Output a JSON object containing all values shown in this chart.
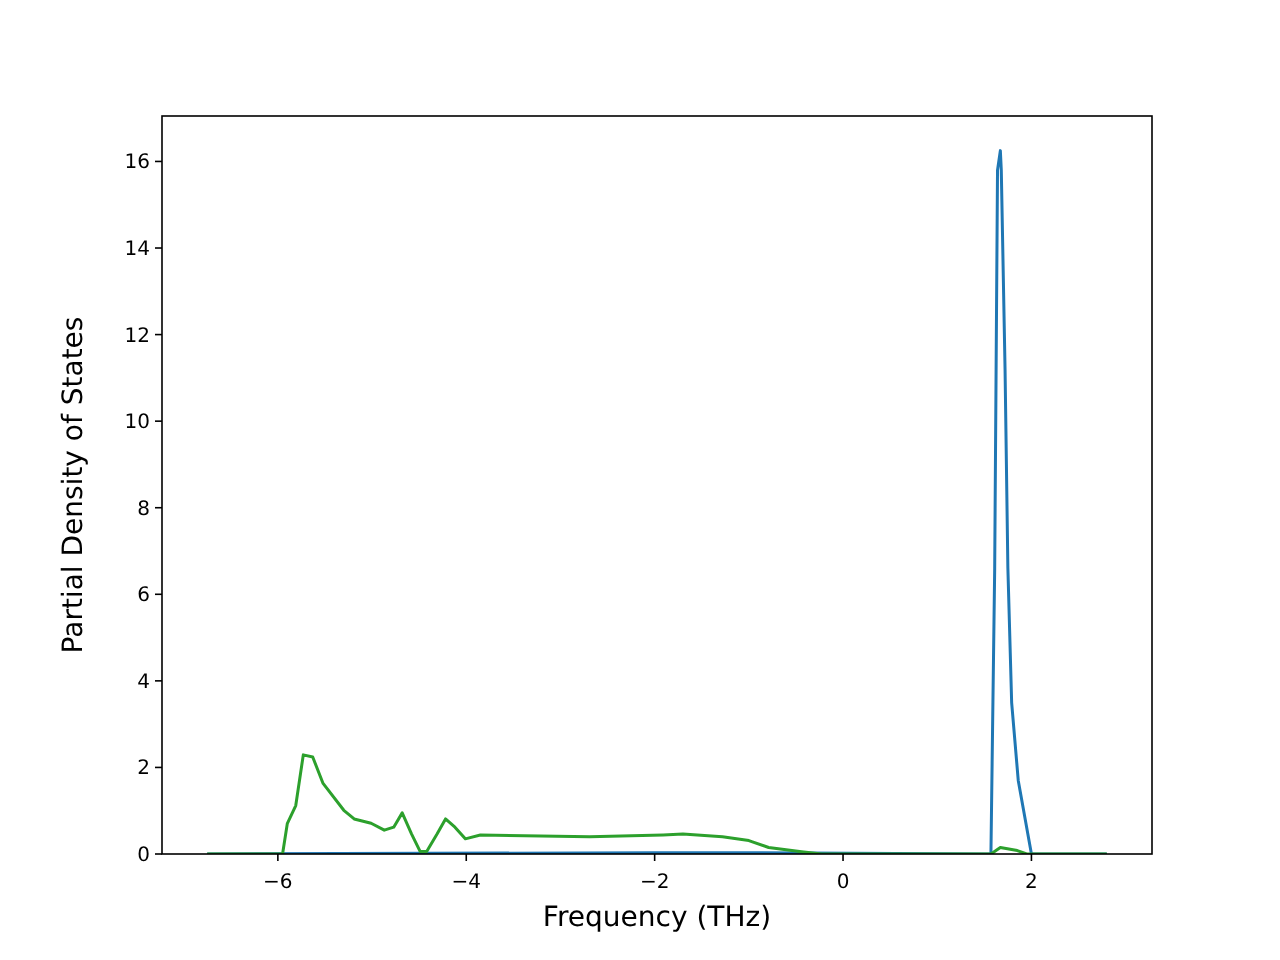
{
  "chart_data": {
    "type": "line",
    "xlabel": "Frequency (THz)",
    "ylabel": "Partial Density of States",
    "xlim": [
      -7.23,
      3.28
    ],
    "ylim": [
      0,
      17.05
    ],
    "xticks": [
      -6,
      -4,
      -2,
      0,
      2
    ],
    "yticks": [
      0,
      2,
      4,
      6,
      8,
      10,
      12,
      14,
      16
    ],
    "grid": false,
    "series": [
      {
        "color": "#1f77b4",
        "x": [
          -6.75,
          -2,
          -1,
          1.5,
          1.57,
          1.61,
          1.64,
          1.67,
          1.68,
          1.72,
          1.75,
          1.79,
          1.86,
          2.0,
          2.8
        ],
        "values": [
          0,
          0.03,
          0.03,
          0,
          0,
          6.6,
          15.8,
          16.25,
          15.8,
          11.2,
          6.6,
          3.5,
          1.7,
          0,
          0
        ]
      },
      {
        "color": "#2ca02c",
        "x": [
          -6.75,
          -5.95,
          -5.9,
          -5.81,
          -5.73,
          -5.63,
          -5.52,
          -5.3,
          -5.19,
          -5.01,
          -4.87,
          -4.77,
          -4.68,
          -4.58,
          -4.49,
          -4.42,
          -4.31,
          -4.22,
          -4.12,
          -4.01,
          -3.85,
          -2.69,
          -1.91,
          -1.7,
          -1.28,
          -1.0,
          -0.79,
          -0.44,
          -0.23,
          1.57,
          1.67,
          1.85,
          1.95,
          2.8
        ],
        "values": [
          0,
          0,
          0.7,
          1.12,
          2.29,
          2.24,
          1.63,
          1.01,
          0.81,
          0.71,
          0.55,
          0.62,
          0.95,
          0.46,
          0.06,
          0.06,
          0.46,
          0.81,
          0.62,
          0.35,
          0.44,
          0.4,
          0.44,
          0.46,
          0.4,
          0.31,
          0.15,
          0.05,
          0,
          0,
          0.15,
          0.08,
          0,
          0
        ]
      }
    ]
  }
}
